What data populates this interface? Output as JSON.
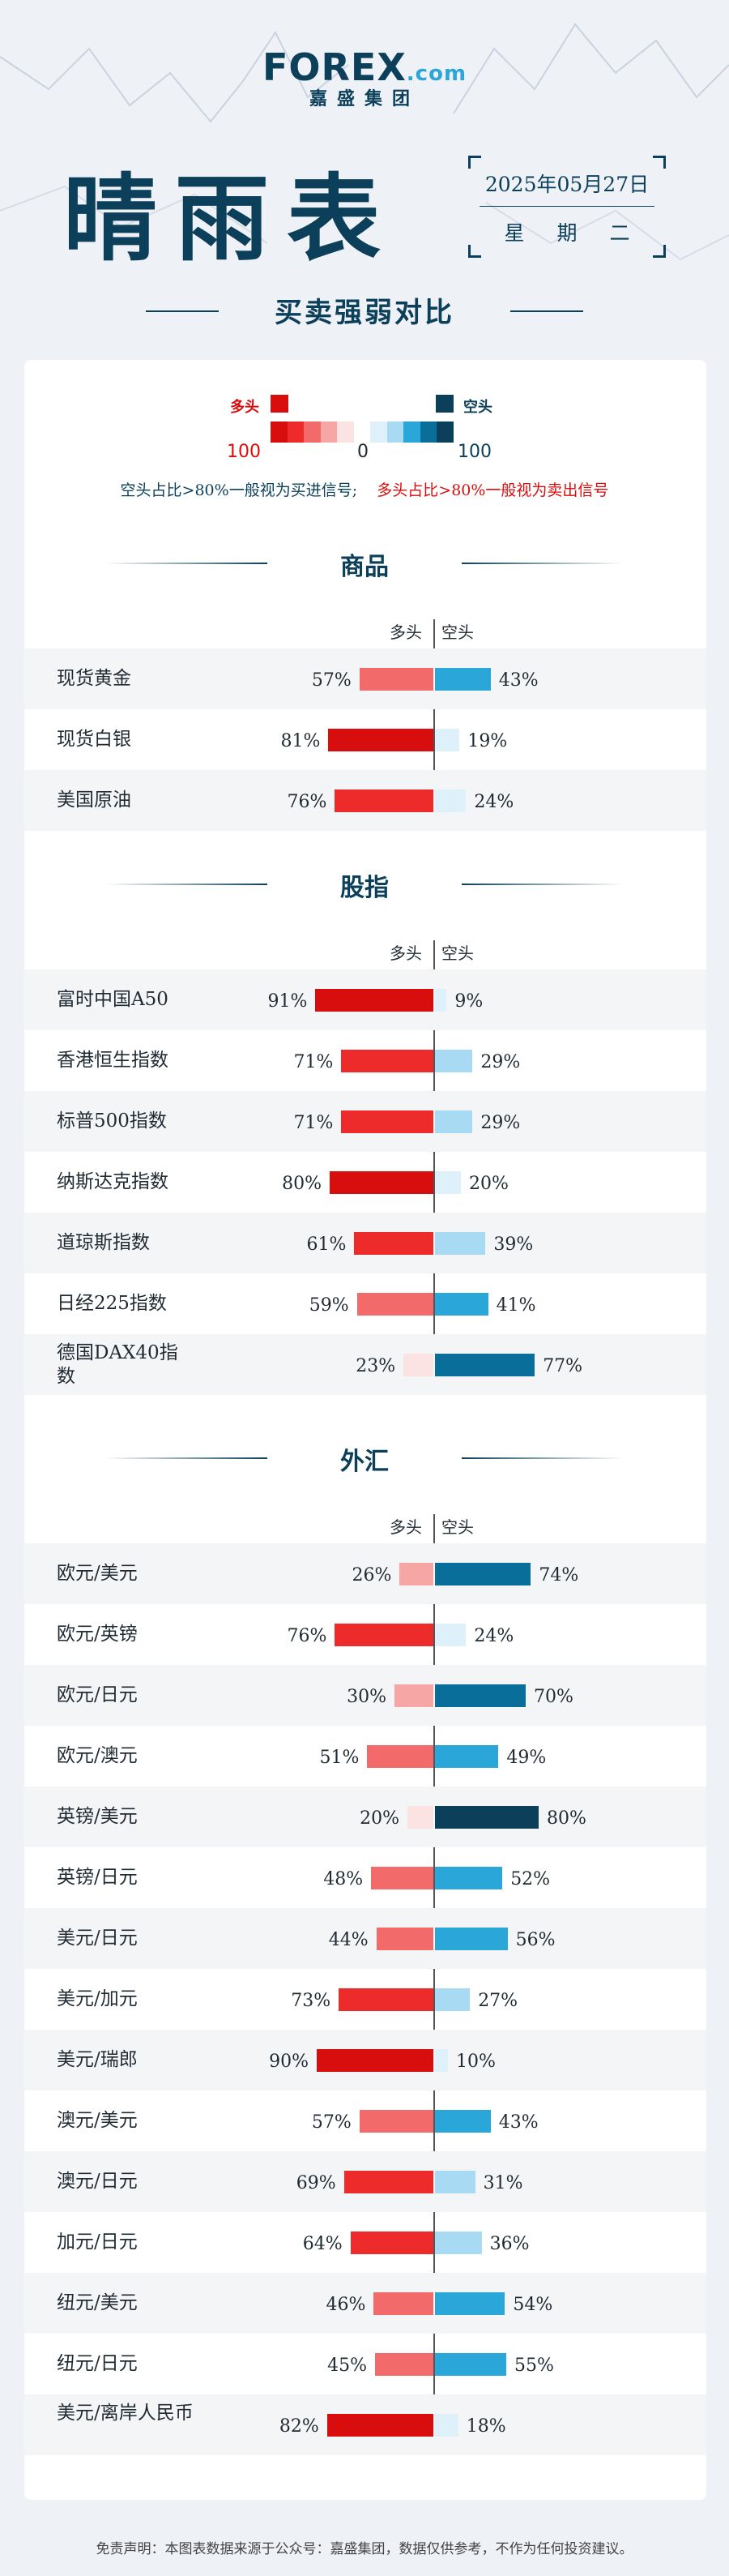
{
  "brand": {
    "name": "FOREX",
    "suffix": ".com",
    "group": "嘉盛集团"
  },
  "title": "晴雨表",
  "date": "2025年05月27日",
  "weekday": "星期二",
  "subtitle": "买卖强弱对比",
  "legend": {
    "long_label": "多头",
    "short_label": "空头",
    "long_max": "100",
    "center": "0",
    "short_max": "100"
  },
  "note": {
    "short_signal": "空头占比>80%一般视为买进信号;",
    "long_signal": "多头占比>80%一般视为卖出信号"
  },
  "column_headers": {
    "long": "多头",
    "short": "空头"
  },
  "colors": {
    "long_scale": [
      "#fbe3e3",
      "#f7a6a6",
      "#f26a6a",
      "#ee2b2b",
      "#d80d0d"
    ],
    "short_scale": [
      "#def0fa",
      "#a9daf4",
      "#2aa6d8",
      "#0a6e9a",
      "#0c3f59"
    ],
    "brand": "#0c3f59"
  },
  "chart_data": {
    "type": "bar",
    "orientation": "horizontal-diverging",
    "series_names": [
      "多头",
      "空头"
    ],
    "sections": [
      {
        "title": "商品",
        "items": [
          {
            "name": "现货黄金",
            "long": 57,
            "short": 43
          },
          {
            "name": "现货白银",
            "long": 81,
            "short": 19
          },
          {
            "name": "美国原油",
            "long": 76,
            "short": 24
          }
        ]
      },
      {
        "title": "股指",
        "items": [
          {
            "name": "富时中国A50",
            "long": 91,
            "short": 9
          },
          {
            "name": "香港恒生指数",
            "long": 71,
            "short": 29
          },
          {
            "name": "标普500指数",
            "long": 71,
            "short": 29
          },
          {
            "name": "纳斯达克指数",
            "long": 80,
            "short": 20
          },
          {
            "name": "道琼斯指数",
            "long": 61,
            "short": 39
          },
          {
            "name": "日经225指数",
            "long": 59,
            "short": 41
          },
          {
            "name": "德国DAX40指数",
            "long": 23,
            "short": 77
          }
        ]
      },
      {
        "title": "外汇",
        "items": [
          {
            "name": "欧元/美元",
            "long": 26,
            "short": 74
          },
          {
            "name": "欧元/英镑",
            "long": 76,
            "short": 24
          },
          {
            "name": "欧元/日元",
            "long": 30,
            "short": 70
          },
          {
            "name": "欧元/澳元",
            "long": 51,
            "short": 49
          },
          {
            "name": "英镑/美元",
            "long": 20,
            "short": 80
          },
          {
            "name": "英镑/日元",
            "long": 48,
            "short": 52
          },
          {
            "name": "美元/日元",
            "long": 44,
            "short": 56
          },
          {
            "name": "美元/加元",
            "long": 73,
            "short": 27
          },
          {
            "name": "美元/瑞郎",
            "long": 90,
            "short": 10
          },
          {
            "name": "澳元/美元",
            "long": 57,
            "short": 43
          },
          {
            "name": "澳元/日元",
            "long": 69,
            "short": 31
          },
          {
            "name": "加元/日元",
            "long": 64,
            "short": 36
          },
          {
            "name": "纽元/美元",
            "long": 46,
            "short": 54
          },
          {
            "name": "纽元/日元",
            "long": 45,
            "short": 55
          },
          {
            "name": "美元/离岸人民币",
            "long": 82,
            "short": 18
          }
        ]
      }
    ]
  },
  "footer": "免责声明：本图表数据来源于公众号：嘉盛集团，数据仅供参考，不作为任何投资建议。"
}
